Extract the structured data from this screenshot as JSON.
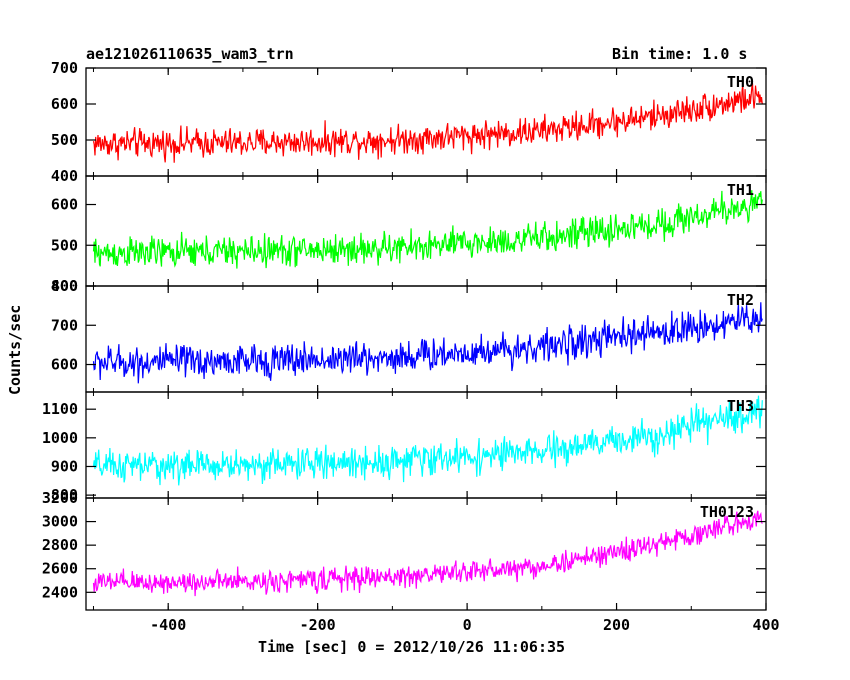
{
  "header": {
    "title": "ae121026110635_wam3_trn",
    "bin_time": "Bin time: 1.0 s"
  },
  "chart_data": {
    "type": "line",
    "xlabel": "Time [sec] 0 = 2012/10/26 11:06:35",
    "ylabel": "Counts/sec",
    "xlim": [
      -510,
      400
    ],
    "xticks": [
      -400,
      -200,
      0,
      200,
      400
    ],
    "x_start": -500,
    "x_end": 395,
    "x_step": 1.0,
    "series": [
      {
        "name": "TH0",
        "color": "#ff0000",
        "ylim": [
          400,
          700
        ],
        "yticks": [
          400,
          500,
          600,
          700
        ],
        "trend": [
          [
            -500,
            490
          ],
          [
            -300,
            492
          ],
          [
            -100,
            500
          ],
          [
            100,
            525
          ],
          [
            250,
            565
          ],
          [
            395,
            622
          ]
        ],
        "noise": 40
      },
      {
        "name": "TH1",
        "color": "#00ff00",
        "ylim": [
          400,
          670
        ],
        "yticks": [
          400,
          500,
          600
        ],
        "trend": [
          [
            -500,
            480
          ],
          [
            -300,
            485
          ],
          [
            -100,
            492
          ],
          [
            100,
            517
          ],
          [
            250,
            550
          ],
          [
            395,
            605
          ]
        ],
        "noise": 38
      },
      {
        "name": "TH2",
        "color": "#0000ff",
        "ylim": [
          530,
          800
        ],
        "yticks": [
          600,
          700,
          800
        ],
        "trend": [
          [
            -500,
            605
          ],
          [
            -300,
            608
          ],
          [
            -100,
            618
          ],
          [
            100,
            645
          ],
          [
            250,
            680
          ],
          [
            395,
            720
          ]
        ],
        "noise": 42
      },
      {
        "name": "TH3",
        "color": "#00ffff",
        "ylim": [
          790,
          1160
        ],
        "yticks": [
          800,
          900,
          1000,
          1100
        ],
        "trend": [
          [
            -500,
            900
          ],
          [
            -300,
            905
          ],
          [
            -100,
            918
          ],
          [
            100,
            950
          ],
          [
            250,
            1010
          ],
          [
            395,
            1095
          ]
        ],
        "noise": 55
      },
      {
        "name": "TH0123",
        "color": "#ff00ff",
        "ylim": [
          2250,
          3200
        ],
        "yticks": [
          2400,
          2600,
          2800,
          3000,
          3200
        ],
        "trend": [
          [
            -500,
            2480
          ],
          [
            -300,
            2490
          ],
          [
            -100,
            2530
          ],
          [
            100,
            2620
          ],
          [
            250,
            2800
          ],
          [
            395,
            3040
          ]
        ],
        "noise": 95
      }
    ]
  }
}
